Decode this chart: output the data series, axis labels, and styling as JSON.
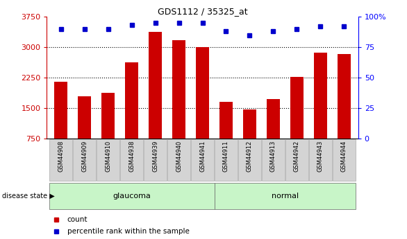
{
  "title": "GDS1112 / 35325_at",
  "samples": [
    "GSM44908",
    "GSM44909",
    "GSM44910",
    "GSM44938",
    "GSM44939",
    "GSM44940",
    "GSM44941",
    "GSM44911",
    "GSM44912",
    "GSM44913",
    "GSM44942",
    "GSM44943",
    "GSM44944"
  ],
  "counts": [
    2150,
    1800,
    1870,
    2620,
    3380,
    3180,
    3000,
    1650,
    1460,
    1720,
    2270,
    2870,
    2840
  ],
  "percentile_ranks": [
    90,
    90,
    90,
    93,
    95,
    95,
    95,
    88,
    85,
    88,
    90,
    92,
    92
  ],
  "groups": [
    "glaucoma",
    "glaucoma",
    "glaucoma",
    "glaucoma",
    "glaucoma",
    "glaucoma",
    "glaucoma",
    "normal",
    "normal",
    "normal",
    "normal",
    "normal",
    "normal"
  ],
  "glaucoma_color": "#c8f5c8",
  "normal_color": "#c8f5c8",
  "bar_color": "#cc0000",
  "dot_color": "#0000cc",
  "ylim_left": [
    750,
    3750
  ],
  "ylim_right": [
    0,
    100
  ],
  "yticks_left": [
    750,
    1500,
    2250,
    3000,
    3750
  ],
  "yticks_right": [
    0,
    25,
    50,
    75,
    100
  ],
  "grid_lines": [
    1500,
    2250,
    3000
  ],
  "legend_count_label": "count",
  "legend_pct_label": "percentile rank within the sample",
  "disease_state_label": "disease state"
}
